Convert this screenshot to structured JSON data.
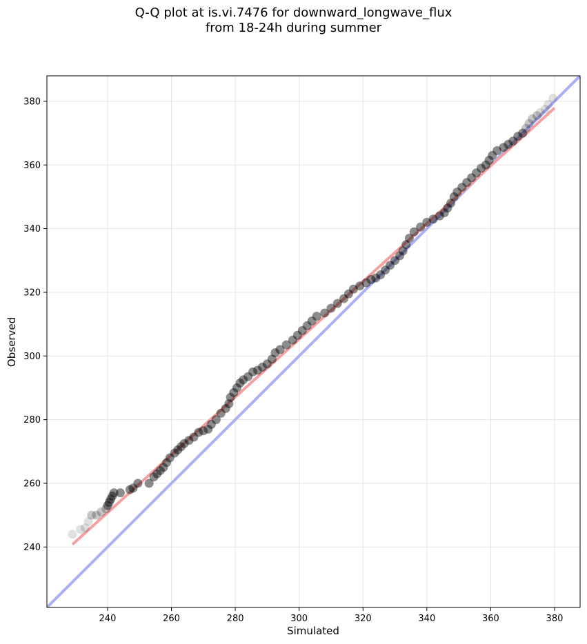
{
  "chart_data": {
    "type": "scatter",
    "title_line1": "Q-Q plot at is.vi.7476 for downward_longwave_flux",
    "title_line2": "from 18-24h during summer",
    "xlabel": "Simulated",
    "ylabel": "Observed",
    "xlim": [
      221,
      388
    ],
    "ylim": [
      221,
      388
    ],
    "xticks": [
      240,
      260,
      280,
      300,
      320,
      340,
      360,
      380
    ],
    "yticks": [
      240,
      260,
      280,
      300,
      320,
      340,
      360,
      380
    ],
    "grid": true,
    "quantile_points": [
      [
        229,
        244
      ],
      [
        231.5,
        245.5
      ],
      [
        233,
        246
      ],
      [
        234,
        248
      ],
      [
        235,
        250
      ],
      [
        236.5,
        250
      ],
      [
        238,
        251
      ],
      [
        239.5,
        252
      ],
      [
        240,
        253
      ],
      [
        240.5,
        254
      ],
      [
        241,
        255
      ],
      [
        241.5,
        256
      ],
      [
        242,
        257
      ],
      [
        244,
        257
      ],
      [
        247,
        258
      ],
      [
        248,
        258.5
      ],
      [
        249.5,
        260
      ],
      [
        253,
        260
      ],
      [
        254.5,
        262
      ],
      [
        255.5,
        263
      ],
      [
        256.5,
        264
      ],
      [
        257.5,
        265
      ],
      [
        258.5,
        266.5
      ],
      [
        259.5,
        268
      ],
      [
        261,
        269.5
      ],
      [
        262,
        270.5
      ],
      [
        263,
        271.5
      ],
      [
        264,
        272.5
      ],
      [
        265.5,
        273.5
      ],
      [
        267,
        274.5
      ],
      [
        268.5,
        276
      ],
      [
        270,
        276.5
      ],
      [
        271.5,
        277
      ],
      [
        272.5,
        278.5
      ],
      [
        274,
        280
      ],
      [
        275.5,
        282
      ],
      [
        277,
        283.5
      ],
      [
        278,
        285
      ],
      [
        278.5,
        287
      ],
      [
        279.5,
        288.5
      ],
      [
        280.5,
        290
      ],
      [
        281.5,
        291.5
      ],
      [
        282.5,
        292.5
      ],
      [
        284,
        293.5
      ],
      [
        285.5,
        295
      ],
      [
        287,
        295.5
      ],
      [
        288.5,
        296.5
      ],
      [
        290,
        297.5
      ],
      [
        291.5,
        299
      ],
      [
        292.5,
        301
      ],
      [
        294,
        302
      ],
      [
        296,
        303.5
      ],
      [
        298,
        305
      ],
      [
        299.5,
        306.5
      ],
      [
        301,
        308
      ],
      [
        302.5,
        309.5
      ],
      [
        304,
        311
      ],
      [
        305.5,
        312.5
      ],
      [
        308,
        313.5
      ],
      [
        310,
        315
      ],
      [
        312,
        316.5
      ],
      [
        314,
        318
      ],
      [
        315.5,
        319.5
      ],
      [
        317,
        321
      ],
      [
        319,
        322
      ],
      [
        321,
        323
      ],
      [
        322.5,
        324
      ],
      [
        324,
        324.5
      ],
      [
        325.5,
        325.5
      ],
      [
        327,
        327
      ],
      [
        328.5,
        328.5
      ],
      [
        330,
        330
      ],
      [
        331.5,
        331.5
      ],
      [
        332.5,
        333
      ],
      [
        333.5,
        335
      ],
      [
        334.5,
        337
      ],
      [
        336,
        339
      ],
      [
        338,
        340.5
      ],
      [
        340,
        342
      ],
      [
        342,
        343
      ],
      [
        344,
        344
      ],
      [
        345.5,
        345
      ],
      [
        346.5,
        346.5
      ],
      [
        347.5,
        348
      ],
      [
        348.5,
        350
      ],
      [
        349.5,
        351.5
      ],
      [
        351,
        353
      ],
      [
        352.5,
        354.5
      ],
      [
        354,
        356
      ],
      [
        355.5,
        357.5
      ],
      [
        357,
        359
      ],
      [
        358.5,
        360
      ],
      [
        359.5,
        361.5
      ],
      [
        360.5,
        363
      ],
      [
        362,
        364.5
      ],
      [
        364,
        365.5
      ],
      [
        365.5,
        366.5
      ],
      [
        367,
        367.5
      ],
      [
        368.5,
        369
      ],
      [
        370,
        370
      ],
      [
        371,
        371.5
      ],
      [
        372,
        373
      ],
      [
        373,
        374.5
      ],
      [
        374.5,
        375.5
      ],
      [
        375.5,
        376.5
      ],
      [
        377,
        377.5
      ],
      [
        378,
        379
      ],
      [
        379.5,
        381
      ]
    ],
    "fit_line": {
      "color": "#f4a0a0",
      "x": [
        229,
        380
      ],
      "y": [
        240.8,
        377.9
      ]
    },
    "identity_line": {
      "color": "#aab0f5",
      "x": [
        221,
        388
      ],
      "y": [
        221,
        388
      ]
    },
    "point_color": "#000000"
  }
}
